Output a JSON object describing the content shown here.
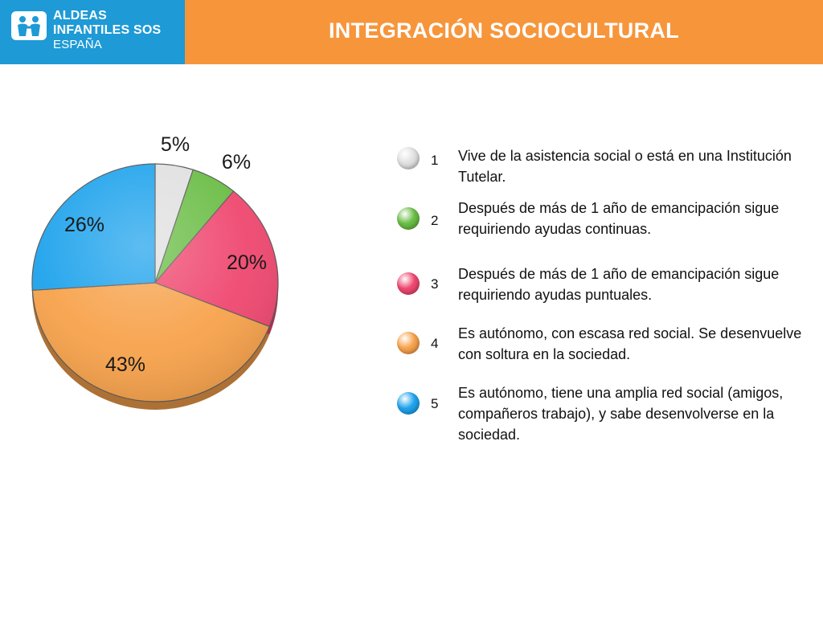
{
  "logo": {
    "line1": "ALDEAS",
    "line2": "INFANTILES SOS",
    "line3": "ESPAÑA"
  },
  "title": "INTEGRACIÓN SOCIOCULTURAL",
  "chart_data": {
    "type": "pie",
    "title": "",
    "slices": [
      {
        "label": "1",
        "value": 5,
        "value_label": "5%",
        "color": "#e0e0e0"
      },
      {
        "label": "2",
        "value": 6,
        "value_label": "6%",
        "color": "#6abd45"
      },
      {
        "label": "3",
        "value": 20,
        "value_label": "20%",
        "color": "#ef476f"
      },
      {
        "label": "4",
        "value": 43,
        "value_label": "43%",
        "color": "#f7a24b"
      },
      {
        "label": "5",
        "value": 26,
        "value_label": "26%",
        "color": "#1fa3ec"
      }
    ],
    "legend_position": "right"
  },
  "legend": [
    {
      "number": "1",
      "text": "Vive de la asistencia social o está en una Institución Tutelar."
    },
    {
      "number": "2",
      "text": "Después de más de 1 año de emancipación sigue requiriendo ayudas continuas."
    },
    {
      "number": "3",
      "text": "Después de más de 1 año de emancipación sigue requiriendo ayudas puntuales."
    },
    {
      "number": "4",
      "text": "Es autónomo, con escasa red social. Se desenvuelve con soltura en la sociedad."
    },
    {
      "number": "5",
      "text": "Es autónomo, tiene una amplia red social (amigos, compañeros trabajo), y sabe desenvolverse en la sociedad."
    }
  ],
  "colors": {
    "header_blue": "#1e9ad6",
    "header_orange": "#f7953b"
  }
}
